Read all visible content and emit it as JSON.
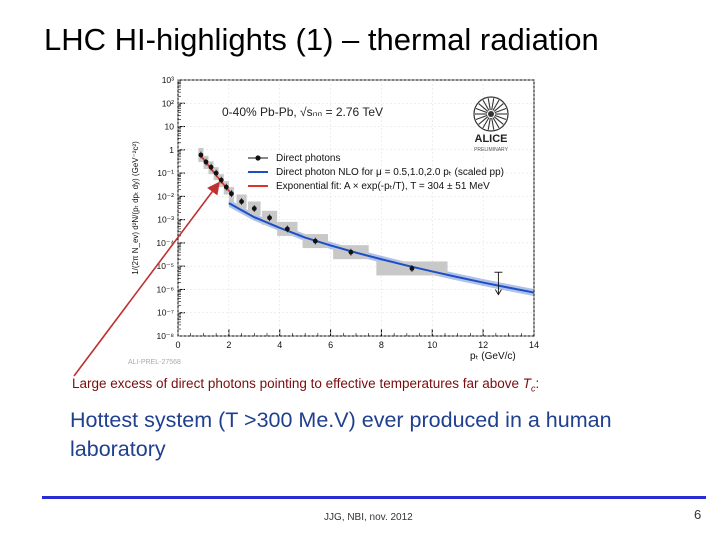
{
  "slide": {
    "title": "LHC HI-highlights (1)  – thermal radiation",
    "caption_main": "Large excess of direct photons pointing to effective temperatures far above ",
    "caption_tc": "T",
    "caption_tc_sub": "c",
    "caption_end": ":",
    "body_text": "Hottest system (T >300 Me.V) ever produced in a human laboratory",
    "footer": "JJG, NBI, nov. 2012",
    "page_number": "6",
    "colors": {
      "caption": "#7a0c0c",
      "body": "#1f3f8f",
      "rule": "#2b2bd6",
      "arrow": "#c03030"
    }
  },
  "chart_data": {
    "type": "scatter",
    "annotation": "0-40% Pb-Pb, √sₙₙ = 2.76 TeV",
    "logo_text": "ALICE",
    "logo_sub": "PRELIMINARY",
    "watermark": "ALI-PREL-27568",
    "xlabel": "pₜ (GeV/c)",
    "ylabel": "1/(2π N_ev) d²N/(pₜ dpₜ dy) (GeV⁻²c²)",
    "xlim": [
      0,
      14
    ],
    "ylim_log10": [
      -8,
      3
    ],
    "x_ticks": [
      "0",
      "2",
      "4",
      "6",
      "8",
      "10",
      "12",
      "14"
    ],
    "y_ticks": [
      "10⁻⁸",
      "10⁻⁷",
      "10⁻⁶",
      "10⁻⁵",
      "10⁻⁴",
      "10⁻³",
      "10⁻²",
      "10⁻¹",
      "1",
      "10",
      "10²",
      "10³"
    ],
    "legend": [
      "Direct photons",
      "Direct photon NLO for μ = 0.5,1.0,2.0 pₜ (scaled pp)",
      "Exponential fit: A × exp(-pₜ/T), T = 304 ± 51 MeV"
    ],
    "series": [
      {
        "name": "Direct photons",
        "points": [
          {
            "x": 0.9,
            "y": 0.6,
            "sys_lo": 0.3,
            "sys_hi": 1.2
          },
          {
            "x": 1.1,
            "y": 0.3,
            "sys_lo": 0.15,
            "sys_hi": 0.55
          },
          {
            "x": 1.3,
            "y": 0.18,
            "sys_lo": 0.09,
            "sys_hi": 0.32
          },
          {
            "x": 1.5,
            "y": 0.1,
            "sys_lo": 0.05,
            "sys_hi": 0.18
          },
          {
            "x": 1.7,
            "y": 0.05,
            "sys_lo": 0.025,
            "sys_hi": 0.09
          },
          {
            "x": 1.9,
            "y": 0.025,
            "sys_lo": 0.012,
            "sys_hi": 0.045
          },
          {
            "x": 2.1,
            "y": 0.013,
            "sys_lo": 0.006,
            "sys_hi": 0.025
          },
          {
            "x": 2.5,
            "y": 0.006,
            "sys_lo": 0.003,
            "sys_hi": 0.012
          },
          {
            "x": 3.0,
            "y": 0.003,
            "sys_lo": 0.0015,
            "sys_hi": 0.006
          },
          {
            "x": 3.6,
            "y": 0.0012,
            "sys_lo": 0.0006,
            "sys_hi": 0.0024
          },
          {
            "x": 4.3,
            "y": 0.0004,
            "sys_lo": 0.0002,
            "sys_hi": 0.0008
          },
          {
            "x": 5.4,
            "y": 0.00012,
            "sys_lo": 6e-05,
            "sys_hi": 0.00024
          },
          {
            "x": 6.8,
            "y": 4e-05,
            "sys_lo": 2e-05,
            "sys_hi": 8e-05
          },
          {
            "x": 9.2,
            "y": 8e-06,
            "sys_lo": 4e-06,
            "sys_hi": 1.6e-05
          }
        ],
        "sys_width": [
          0.2,
          0.2,
          0.2,
          0.2,
          0.2,
          0.2,
          0.2,
          0.4,
          0.5,
          0.6,
          0.8,
          1.0,
          1.4,
          2.8
        ],
        "upper_limit": {
          "x": 12.6,
          "y_from": 5.5e-06,
          "y_to": 6e-07
        }
      },
      {
        "name": "NLO band (scaled pp)",
        "x": [
          2,
          3,
          4,
          5,
          6,
          7,
          8,
          9,
          10,
          11,
          12,
          13,
          14
        ],
        "y_lo": [
          0.0035,
          0.0009,
          0.00032,
          0.00012,
          5.5e-05,
          2.7e-05,
          1.4e-05,
          7.5e-06,
          4.2e-06,
          2.4e-06,
          1.4e-06,
          8.5e-07,
          5.2e-07
        ],
        "y_hi": [
          0.0075,
          0.0018,
          0.00062,
          0.00024,
          0.00011,
          5.4e-05,
          2.8e-05,
          1.5e-05,
          8.4e-06,
          4.8e-06,
          2.8e-06,
          1.7e-06,
          1.04e-06
        ]
      },
      {
        "name": "Exponential fit",
        "x": [
          0.9,
          1.2,
          1.5,
          1.8,
          2.1
        ],
        "y": [
          0.55,
          0.21,
          0.08,
          0.032,
          0.013
        ]
      }
    ],
    "colors": {
      "nlo": "#1d4fc4",
      "fit": "#e0302a",
      "marker": "#111111",
      "sys_box": "#c8c8c8"
    }
  }
}
